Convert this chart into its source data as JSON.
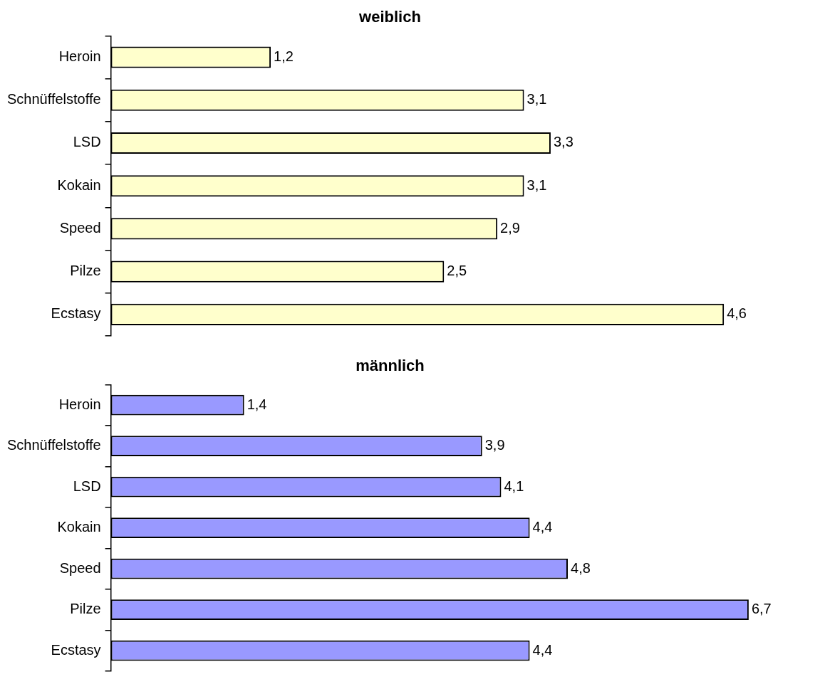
{
  "chart_data": [
    {
      "type": "bar",
      "title": "weiblich",
      "orientation": "horizontal",
      "categories": [
        "Heroin",
        "Schnüffelstoffe",
        "LSD",
        "Kokain",
        "Speed",
        "Pilze",
        "Ecstasy"
      ],
      "series": [
        {
          "color": "#ffffcc",
          "values": [
            1.2,
            3.1,
            3.3,
            3.1,
            2.9,
            2.5,
            4.6
          ],
          "value_labels": [
            "1,2",
            "3,1",
            "3,3",
            "3,1",
            "2,9",
            "2,5",
            "4,6"
          ]
        }
      ],
      "tick_labels": "y"
    },
    {
      "type": "bar",
      "title": "männlich",
      "orientation": "horizontal",
      "categories": [
        "Heroin",
        "Schnüffelstoffe",
        "LSD",
        "Kokain",
        "Speed",
        "Pilze",
        "Ecstasy"
      ],
      "series": [
        {
          "color": "#9999ff",
          "values": [
            1.4,
            3.9,
            4.1,
            4.4,
            4.8,
            6.7,
            4.4
          ],
          "value_labels": [
            "1,4",
            "3,9",
            "4,1",
            "4,4",
            "4,8",
            "6,7",
            "4,4"
          ]
        }
      ],
      "tick_labels": "y"
    }
  ]
}
